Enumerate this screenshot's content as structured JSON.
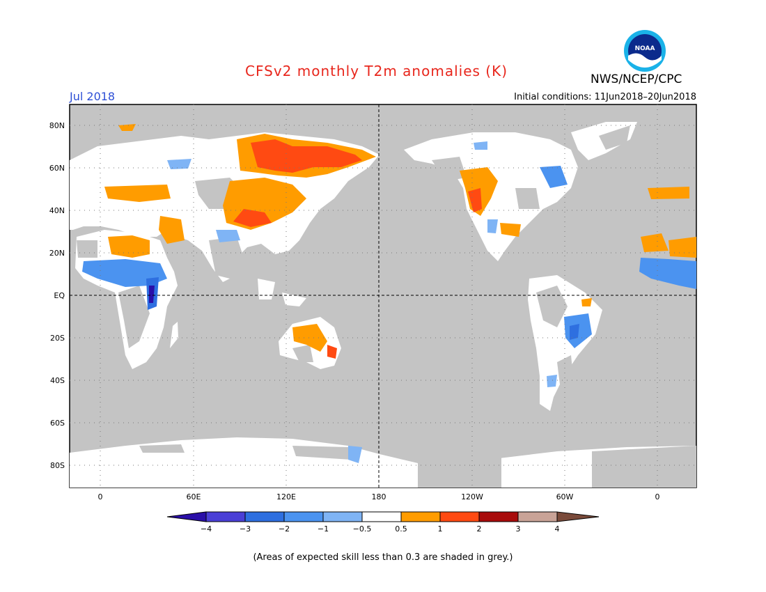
{
  "header": {
    "title": "CFSv2 monthly T2m anomalies (K)",
    "organization": "NWS/NCEP/CPC",
    "logo_text": "NOAA",
    "month": "Jul 2018",
    "initial_conditions": "Initial conditions: 11Jun2018–20Jun2018"
  },
  "map": {
    "projection": "cylindrical equidistant",
    "lat_labels": [
      "80N",
      "60N",
      "40N",
      "20N",
      "EQ",
      "20S",
      "40S",
      "60S",
      "80S"
    ],
    "lon_labels": [
      "0",
      "60E",
      "120E",
      "180",
      "120W",
      "60W",
      "0"
    ],
    "background_note": "grey"
  },
  "legend": {
    "ticks": [
      "−4",
      "−3",
      "−2",
      "−1",
      "−0.5",
      "0.5",
      "1",
      "2",
      "3",
      "4"
    ],
    "colors": [
      "#2a0fa8",
      "#4a3fd6",
      "#2e6fe0",
      "#4b93f0",
      "#7fb4f5",
      "#ffffff",
      "#ff9c00",
      "#ff4a12",
      "#a80b0b",
      "#c9a397",
      "#7a4a3a"
    ]
  },
  "footnote": "(Areas of expected skill less than 0.3 are shaded in grey.)"
}
